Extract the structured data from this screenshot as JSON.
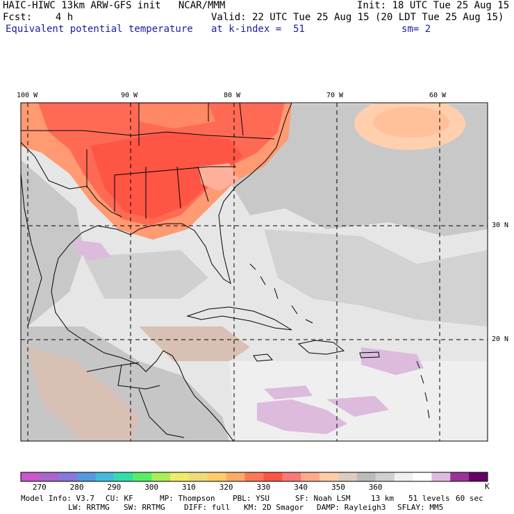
{
  "header": {
    "line1_left": "HAIC-HIWC 13km ARW-GFS init   NCAR/MMM",
    "line1_right": "Init: 18 UTC Tue 25 Aug 15",
    "line2_left": "Fcst:    4 h",
    "line2_right": "Valid: 22 UTC Tue 25 Aug 15 (20 LDT Tue 25 Aug 15)",
    "field_name": "Equivalent potential temperature",
    "level": "at k-index =  51",
    "smoothing": "sm= 2"
  },
  "map": {
    "lon_labels": [
      "100 W",
      "90 W",
      "80 W",
      "70 W",
      "60 W"
    ],
    "lat_labels": [
      "30 N",
      "20 N"
    ],
    "region": "Gulf of Mexico, Caribbean and western Atlantic"
  },
  "colorbar": {
    "colors": [
      "#cc55cc",
      "#aa66cc",
      "#8877dd",
      "#5599dd",
      "#44bbdd",
      "#33ddaa",
      "#55ee66",
      "#aaee55",
      "#eeee66",
      "#eedd77",
      "#ffcc66",
      "#ffaa66",
      "#ff7755",
      "#ff5544",
      "#ff7777",
      "#ffaa88",
      "#ffcca8",
      "#ddccbb",
      "#bbbbbb",
      "#d0d0d0",
      "#f0f0f0",
      "#ffffff",
      "#ddbbdd",
      "#993399",
      "#660066"
    ],
    "labels": [
      "270",
      "280",
      "290",
      "300",
      "310",
      "320",
      "330",
      "340",
      "350",
      "360"
    ],
    "unit": "K"
  },
  "footer": {
    "line1": [
      "Model Info: V3.7",
      "CU: KF",
      "MP: Thompson",
      "PBL: YSU",
      "SF: Noah LSM",
      "13 km",
      "51 levels",
      "60 sec"
    ],
    "line2": [
      "LW: RRTMG",
      "SW: RRTMG",
      "DIFF: full",
      "KM: 2D Smagor",
      "DAMP: Rayleigh3",
      "SFLAY: MM5"
    ]
  },
  "colors": {
    "hot": "#ff5544",
    "warm": "#ff8866",
    "peach": "#ffc0a0",
    "tan": "#d8c4bb",
    "gray": "#c4c4c4",
    "light": "#e6e6e6",
    "lavender": "#ddbbdd"
  }
}
